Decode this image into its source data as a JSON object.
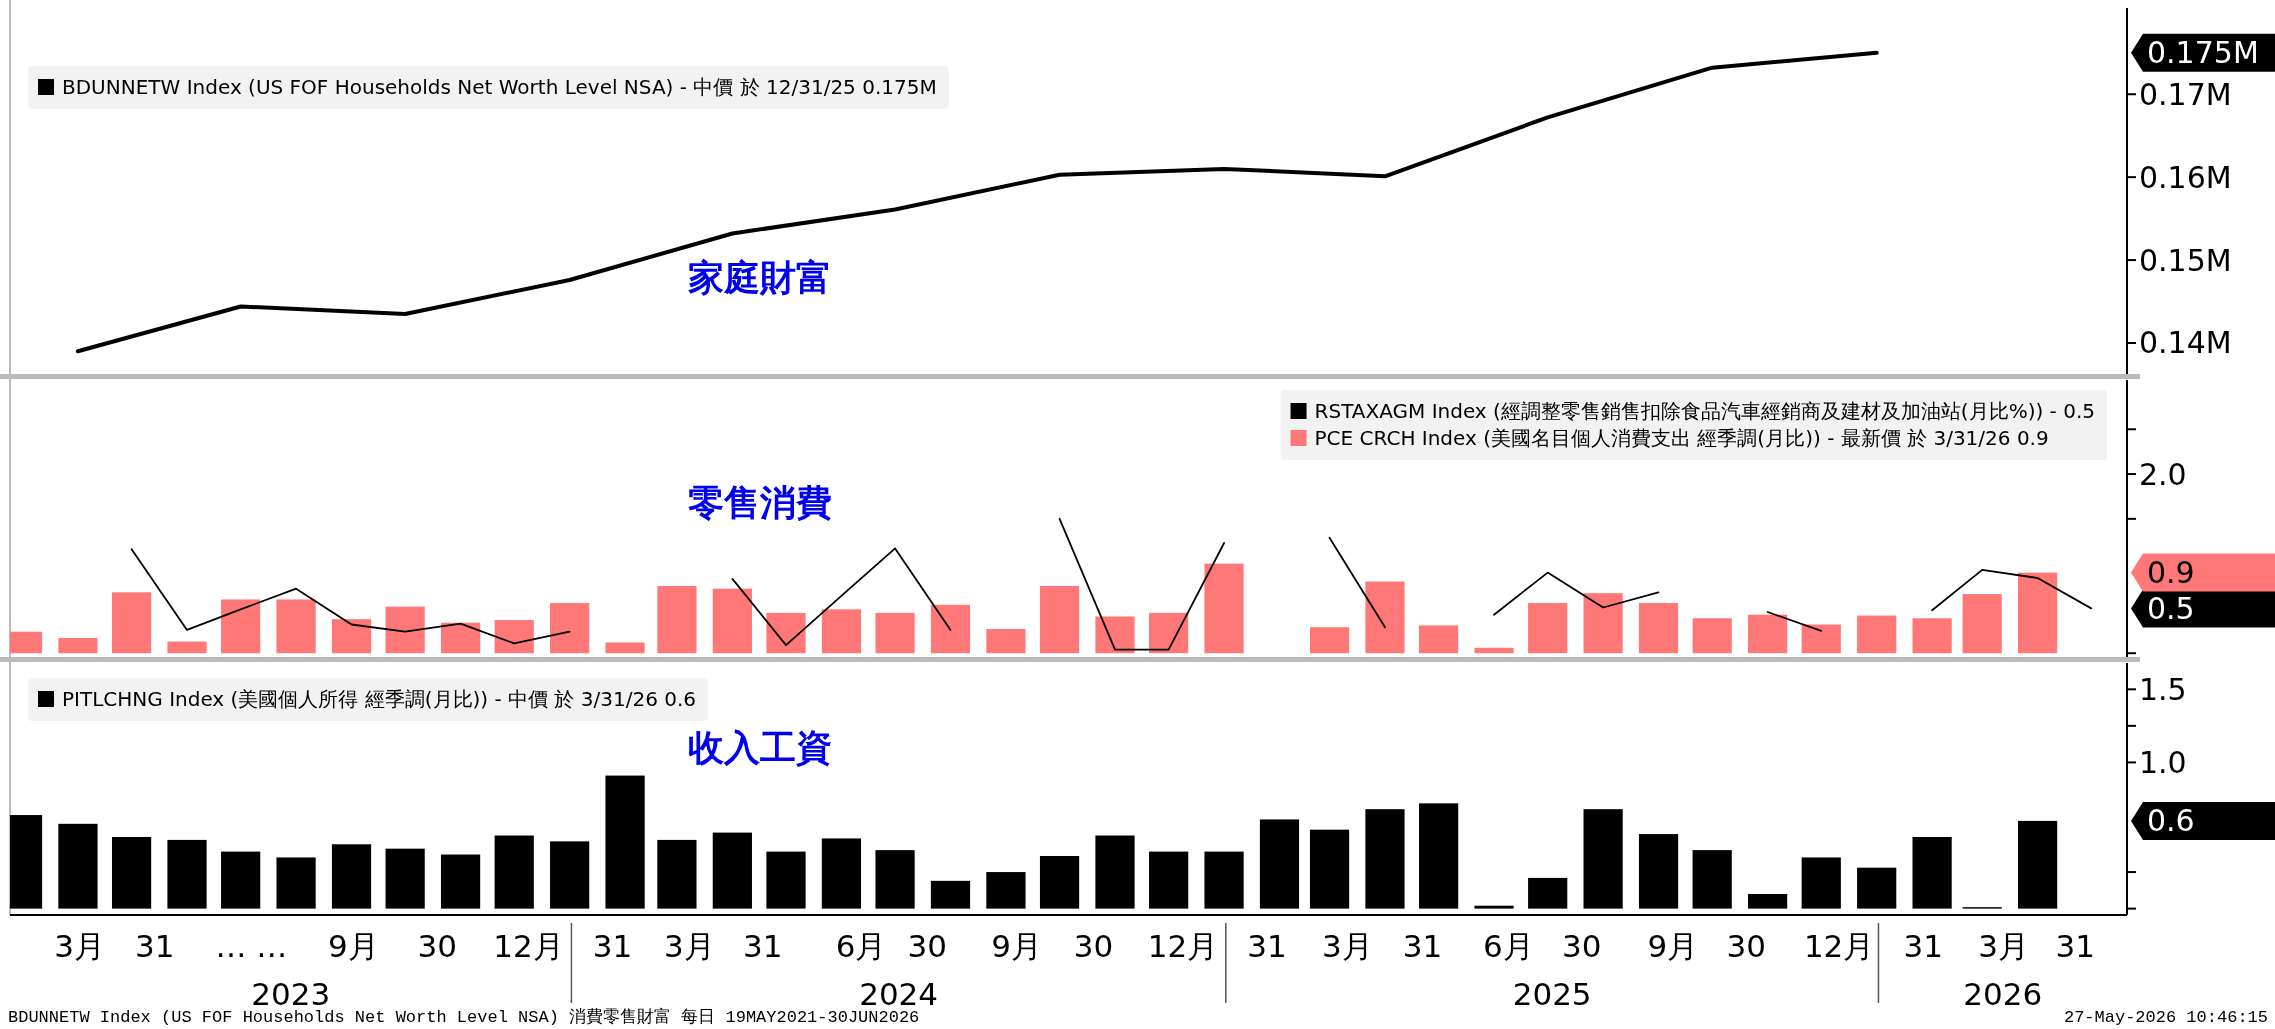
{
  "chart_data": [
    {
      "type": "line",
      "title": "家庭財富",
      "legend": "top left",
      "tick_labels": "y",
      "x": [
        "2023-03-31",
        "2023-06-30",
        "2023-09-30",
        "2023-12-31",
        "2024-03-31",
        "2024-06-30",
        "2024-09-30",
        "2024-12-31",
        "2025-03-31",
        "2025-06-30",
        "2025-09-30",
        "2025-12-31"
      ],
      "series": [
        {
          "name": "BDUNNETW Index (US FOF Households Net Worth Level NSA) - 中價 於 12/31/25 0.175M",
          "color": "#000000",
          "values": [
            0.139,
            0.1444,
            0.1435,
            0.1476,
            0.1532,
            0.1561,
            0.1603,
            0.161,
            0.1601,
            0.1672,
            0.1732,
            0.175
          ]
        }
      ],
      "xlim": [
        "2023-02-21",
        "2026-05-20"
      ],
      "ylim": [
        0.1365,
        0.1804
      ],
      "yticks": [
        {
          "value": 0.14,
          "label": "0.14M"
        },
        {
          "value": 0.15,
          "label": "0.15M"
        },
        {
          "value": 0.16,
          "label": "0.16M"
        },
        {
          "value": 0.17,
          "label": "0.17M"
        },
        {
          "value": 0.175,
          "label": "0.175M"
        }
      ]
    },
    {
      "type": "bar",
      "title": "零售消費",
      "legend": "top right",
      "tick_labels": "y",
      "x": [
        "2023-02-28",
        "2023-03-31",
        "2023-04-30",
        "2023-05-31",
        "2023-06-30",
        "2023-07-31",
        "2023-08-31",
        "2023-09-30",
        "2023-10-31",
        "2023-11-30",
        "2023-12-31",
        "2024-01-31",
        "2024-02-29",
        "2024-03-31",
        "2024-04-30",
        "2024-05-31",
        "2024-06-30",
        "2024-07-31",
        "2024-08-31",
        "2024-09-30",
        "2024-10-31",
        "2024-11-30",
        "2024-12-31",
        "2025-01-31",
        "2025-02-28",
        "2025-03-31",
        "2025-04-30",
        "2025-05-31",
        "2025-06-30",
        "2025-07-31",
        "2025-08-31",
        "2025-09-30",
        "2025-10-31",
        "2025-11-30",
        "2025-12-31",
        "2026-01-31",
        "2026-02-28",
        "2026-03-31",
        "2026-04-30"
      ],
      "series": [
        {
          "name": "RSTAXAGM Index (經調整零售銷售扣除食品汽車經銷商及建材及加油站(月比%)) - 0.5",
          "type": "line",
          "color": "#000000",
          "values": [
            null,
            null,
            1.16,
            0.26,
            0.49,
            0.72,
            0.32,
            0.24,
            0.33,
            0.11,
            0.24,
            null,
            null,
            0.83,
            0.09,
            0.64,
            1.17,
            0.26,
            null,
            1.5,
            0.04,
            0.04,
            1.23,
            null,
            1.29,
            0.29,
            null,
            0.43,
            0.9,
            0.51,
            0.68,
            null,
            0.46,
            0.25,
            null,
            0.48,
            0.93,
            0.84,
            0.5
          ]
        },
        {
          "name": "PCE CRCH Index (美國名目個人消費支出 經季調(月比)) - 最新價 於 3/31/26 0.9",
          "color": "#ff7777",
          "values": [
            0.24,
            0.17,
            0.68,
            0.13,
            0.6,
            0.6,
            0.38,
            0.52,
            0.34,
            0.37,
            0.56,
            0.12,
            0.75,
            0.72,
            0.45,
            0.49,
            0.45,
            0.54,
            0.27,
            0.75,
            0.41,
            0.45,
            1.0,
            0,
            0.29,
            0.8,
            0.31,
            0.06,
            0.56,
            0.67,
            0.56,
            0.39,
            0.43,
            0.32,
            0.42,
            0.39,
            0.66,
            0.9,
            null
          ]
        }
      ],
      "xlim": [
        "2023-02-21",
        "2026-05-20"
      ],
      "ylim": [
        -0.02,
        3.05
      ],
      "yticks": [
        {
          "value": 0,
          "label": null
        },
        {
          "value": 0.5,
          "label": "0.5"
        },
        {
          "value": 0.9,
          "label": "0.9"
        },
        {
          "value": 1.5,
          "label": null
        },
        {
          "value": 2,
          "label": "2.0"
        },
        {
          "value": 2.5,
          "label": null
        }
      ]
    },
    {
      "type": "bar",
      "title": "收入工資",
      "legend": "top left",
      "x": [
        "2023-02-28",
        "2023-03-31",
        "2023-04-30",
        "2023-05-31",
        "2023-06-30",
        "2023-07-31",
        "2023-08-31",
        "2023-09-30",
        "2023-10-31",
        "2023-11-30",
        "2023-12-31",
        "2024-01-31",
        "2024-02-29",
        "2024-03-31",
        "2024-04-30",
        "2024-05-31",
        "2024-06-30",
        "2024-07-31",
        "2024-08-31",
        "2024-09-30",
        "2024-10-31",
        "2024-11-30",
        "2024-12-31",
        "2025-01-31",
        "2025-02-28",
        "2025-03-31",
        "2025-04-30",
        "2025-05-31",
        "2025-06-30",
        "2025-07-31",
        "2025-08-31",
        "2025-09-30",
        "2025-10-31",
        "2025-11-30",
        "2025-12-31",
        "2026-01-31",
        "2026-02-28",
        "2026-03-31"
      ],
      "series": [
        {
          "name": "PITLCHNG Index (美國個人所得 經季調(月比)) - 中價 於 3/31/26 0.6",
          "color": "#000000",
          "values": [
            0.64,
            0.58,
            0.49,
            0.47,
            0.39,
            0.35,
            0.44,
            0.41,
            0.37,
            0.5,
            0.46,
            0.91,
            0.47,
            0.52,
            0.39,
            0.48,
            0.4,
            0.19,
            0.25,
            0.36,
            0.5,
            0.39,
            0.39,
            0.61,
            0.54,
            0.68,
            0.72,
            0.02,
            0.21,
            0.68,
            0.51,
            0.4,
            0.1,
            0.35,
            0.28,
            0.49,
            0.01,
            0.6
          ]
        }
      ],
      "xlim": [
        "2023-02-21",
        "2026-05-20"
      ],
      "ylim": [
        -0.03,
        1.68
      ],
      "yticks": [
        {
          "value": 0,
          "label": null
        },
        {
          "value": 0.25,
          "label": null
        },
        {
          "value": 0.6,
          "label": "0.6"
        },
        {
          "value": 1,
          "label": "1.0"
        },
        {
          "value": 1.25,
          "label": null
        },
        {
          "value": 1.5,
          "label": "1.5"
        }
      ],
      "xticks": [
        {
          "value": "2023-04-01",
          "label": "3月"
        },
        {
          "value": "2023-05-13",
          "label": "31"
        },
        {
          "value": "2023-07-06",
          "label": "… …"
        },
        {
          "value": "2023-09-01",
          "label": "9月"
        },
        {
          "value": "2023-10-18",
          "label": "30"
        },
        {
          "value": "2023-12-08",
          "label": "12月"
        },
        {
          "value": "2024-01-24",
          "label": "31"
        },
        {
          "value": "2024-03-07",
          "label": "3月"
        },
        {
          "value": "2024-04-17",
          "label": "31"
        },
        {
          "value": "2024-06-11",
          "label": "6月"
        },
        {
          "value": "2024-07-18",
          "label": "30"
        },
        {
          "value": "2024-09-06",
          "label": "9月"
        },
        {
          "value": "2024-10-19",
          "label": "30"
        },
        {
          "value": "2024-12-08",
          "label": "12月"
        },
        {
          "value": "2025-01-24",
          "label": "31"
        },
        {
          "value": "2025-03-10",
          "label": "3月"
        },
        {
          "value": "2025-04-21",
          "label": "31"
        },
        {
          "value": "2025-06-08",
          "label": "6月"
        },
        {
          "value": "2025-07-19",
          "label": "30"
        },
        {
          "value": "2025-09-08",
          "label": "9月"
        },
        {
          "value": "2025-10-19",
          "label": "30"
        },
        {
          "value": "2025-12-10",
          "label": "12月"
        },
        {
          "value": "2026-01-26",
          "label": "31"
        },
        {
          "value": "2026-03-12",
          "label": "3月"
        },
        {
          "value": "2026-04-21",
          "label": "31"
        }
      ],
      "annotations": [
        "2023",
        "2024",
        "2025",
        "2026",
        "BDUNNETW Index (US FOF Households Net Worth Level NSA) 消費零售財富 每日 19MAY2021-30JUN2026",
        "27-May-2026 10:46:15"
      ]
    }
  ]
}
